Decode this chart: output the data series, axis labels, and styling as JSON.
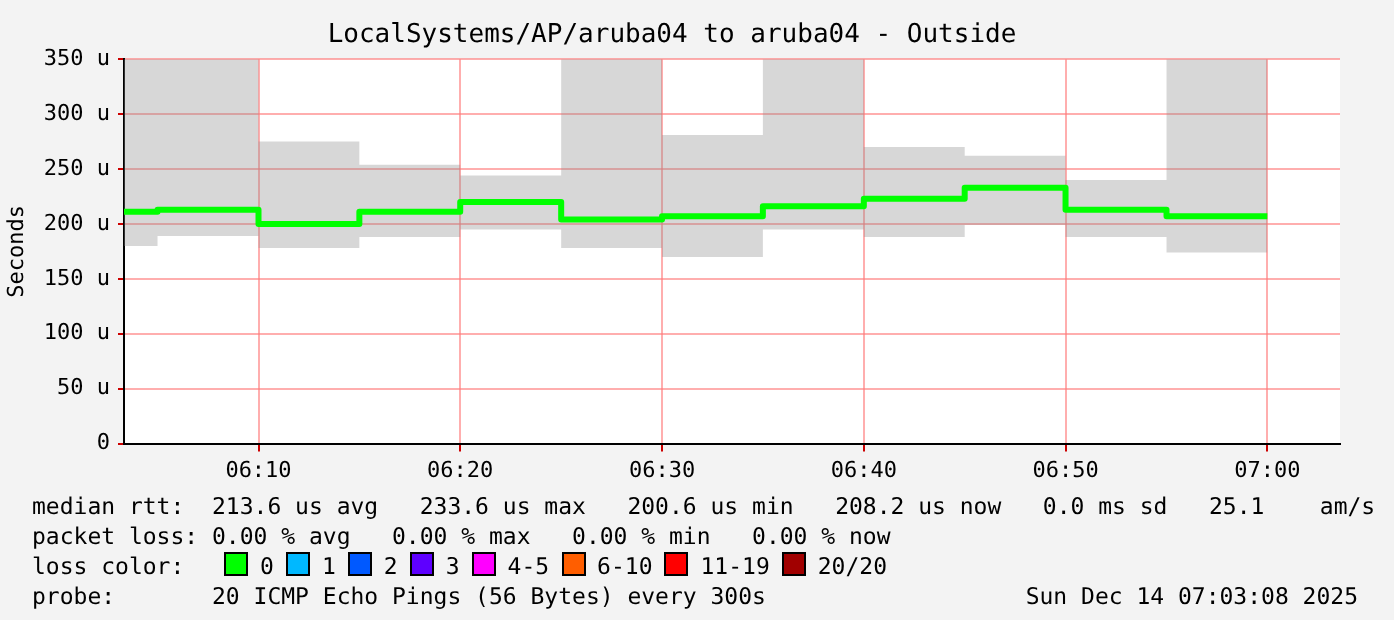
{
  "chart_data": {
    "type": "step",
    "title": "LocalSystems/AP/aruba04 to aruba04 - Outside",
    "ylabel": "Seconds",
    "x": [
      6.0556,
      6.0833,
      6.1667,
      6.25,
      6.3333,
      6.4167,
      6.5,
      6.5833,
      6.6667,
      6.75,
      6.8333,
      6.9167,
      7.0
    ],
    "series": [
      {
        "name": null,
        "color": "#00ff00",
        "values": [
          211,
          213,
          200,
          211,
          220,
          204,
          207,
          216,
          223,
          233,
          213,
          207,
          207
        ],
        "lower": [
          180,
          189,
          178,
          188,
          195,
          178,
          170,
          195,
          188,
          199,
          188,
          174,
          174
        ],
        "upper": [
          350,
          350,
          275,
          254,
          244,
          350,
          281,
          350,
          270,
          262,
          240,
          350,
          350
        ]
      }
    ],
    "xlim": [
      6.0556,
      7.06
    ],
    "xticks": [
      {
        "value": 6.1667,
        "label": "06:10"
      },
      {
        "value": 6.3333,
        "label": "06:20"
      },
      {
        "value": 6.5,
        "label": "06:30"
      },
      {
        "value": 6.6667,
        "label": "06:40"
      },
      {
        "value": 6.8333,
        "label": "06:50"
      },
      {
        "value": 7.0,
        "label": "07:00"
      }
    ],
    "ylim": [
      0,
      350
    ],
    "yticks": [
      0,
      {
        "value": 50,
        "label": "50 u"
      },
      {
        "value": 100,
        "label": "100 u"
      },
      {
        "value": 150,
        "label": "150 u"
      },
      {
        "value": 200,
        "label": "200 u"
      },
      {
        "value": 250,
        "label": "250 u"
      },
      {
        "value": 300,
        "label": "300 u"
      },
      {
        "value": 350,
        "label": "350 u"
      }
    ],
    "grid": true,
    "legend": false,
    "marker": "none",
    "line_style": "solid",
    "annotations": [
      "median rtt:  213.6 us avg   233.6 us max   200.6 us min   208.2 us now   0.0 ms sd   25.1    am/s",
      "packet loss: 0.00 % avg   0.00 % max   0.00 % min   0.00 % now",
      "loss color:",
      "0",
      "1",
      "2",
      "3",
      "4-5",
      "6-10",
      "11-19",
      "20/20",
      "probe:       20 ICMP Echo Pings (56 Bytes) every 300s",
      "Sun Dec 14 07:03:08 2025"
    ]
  }
}
